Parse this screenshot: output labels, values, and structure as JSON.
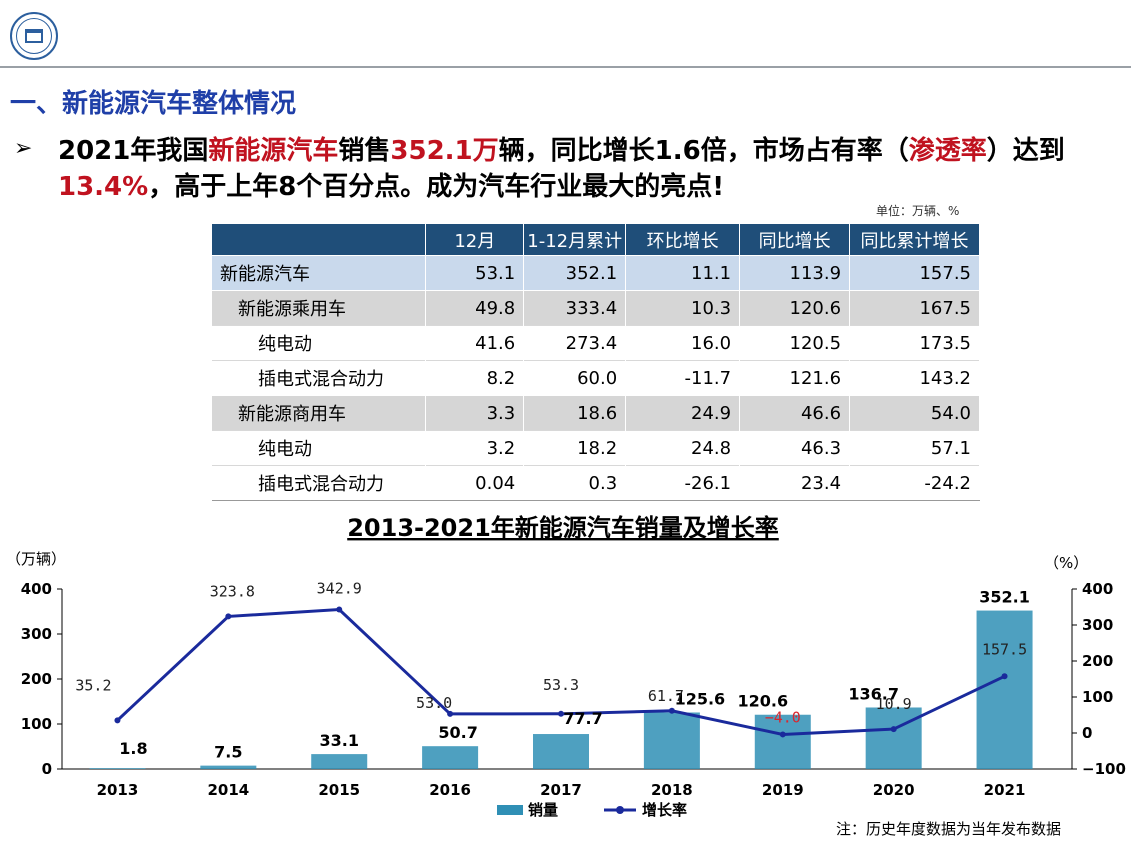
{
  "header": {
    "logo": "university-seal-logo"
  },
  "section_title": "一、新能源汽车整体情况",
  "headline": {
    "bullet": "➢",
    "p1": "2021年我国",
    "h1": "新能源汽车",
    "p2": "销售",
    "h2": "352.1万",
    "p3": "辆，同比增长1.6倍，市场占有率（",
    "h3": "渗透率",
    "p4": "）达到",
    "h4": "13.4%",
    "p5": "，高于上年8个百分点。成为汽车行业最大的亮点!"
  },
  "table": {
    "unit_note": "单位：万辆、%",
    "headers": [
      "",
      "12月",
      "1-12月累计",
      "环比增长",
      "同比增长",
      "同比累计增长"
    ],
    "rows": [
      {
        "label": "新能源汽车",
        "level": 0,
        "style": "total",
        "cells": [
          "53.1",
          "352.1",
          "11.1",
          "113.9",
          "157.5"
        ]
      },
      {
        "label": "新能源乘用车",
        "level": 1,
        "style": "group",
        "cells": [
          "49.8",
          "333.4",
          "10.3",
          "120.6",
          "167.5"
        ]
      },
      {
        "label": "纯电动",
        "level": 2,
        "style": "sub",
        "cells": [
          "41.6",
          "273.4",
          "16.0",
          "120.5",
          "173.5"
        ]
      },
      {
        "label": "插电式混合动力",
        "level": 2,
        "style": "sub",
        "cells": [
          "8.2",
          "60.0",
          "-11.7",
          "121.6",
          "143.2"
        ]
      },
      {
        "label": "新能源商用车",
        "level": 1,
        "style": "group",
        "cells": [
          "3.3",
          "18.6",
          "24.9",
          "46.6",
          "54.0"
        ]
      },
      {
        "label": "纯电动",
        "level": 2,
        "style": "sub",
        "cells": [
          "3.2",
          "18.2",
          "24.8",
          "46.3",
          "57.1"
        ]
      },
      {
        "label": "插电式混合动力",
        "level": 2,
        "style": "sub",
        "cells": [
          "0.04",
          "0.3",
          "-26.1",
          "23.4",
          "-24.2"
        ]
      }
    ]
  },
  "chart_data": {
    "type": "bar",
    "title": "2013-2021年新能源汽车销量及增长率",
    "ylabel": "（万辆）",
    "y2label": "（%）",
    "categories": [
      "2013",
      "2014",
      "2015",
      "2016",
      "2017",
      "2018",
      "2019",
      "2020",
      "2021"
    ],
    "ylim": [
      0,
      400
    ],
    "y2lim": [
      -100,
      400
    ],
    "yticks": [
      "0",
      "100",
      "200",
      "300",
      "400"
    ],
    "y2ticks": [
      "−100",
      "0",
      "100",
      "200",
      "300",
      "400"
    ],
    "series": [
      {
        "name": "销量",
        "type": "bar",
        "axis": "left",
        "color": "#2f8fb5",
        "values": [
          1.8,
          7.5,
          33.1,
          50.7,
          77.7,
          125.6,
          120.6,
          136.7,
          352.1
        ],
        "labels": [
          "1.8",
          "7.5",
          "33.1",
          "50.7",
          "77.7",
          "125.6",
          "120.6",
          "136.7",
          "352.1"
        ]
      },
      {
        "name": "增长率",
        "type": "line",
        "axis": "right",
        "color": "#1a2a9c",
        "values": [
          35.2,
          323.8,
          342.9,
          53.0,
          53.3,
          61.7,
          -4.0,
          10.9,
          157.5
        ],
        "labels": [
          "35.2",
          "323.8",
          "342.9",
          "53.0",
          "53.3",
          "61.7",
          "−4.0",
          "10.9",
          "157.5"
        ]
      }
    ],
    "legend": "bottom-center",
    "note": "注：历史年度数据为当年发布数据"
  }
}
